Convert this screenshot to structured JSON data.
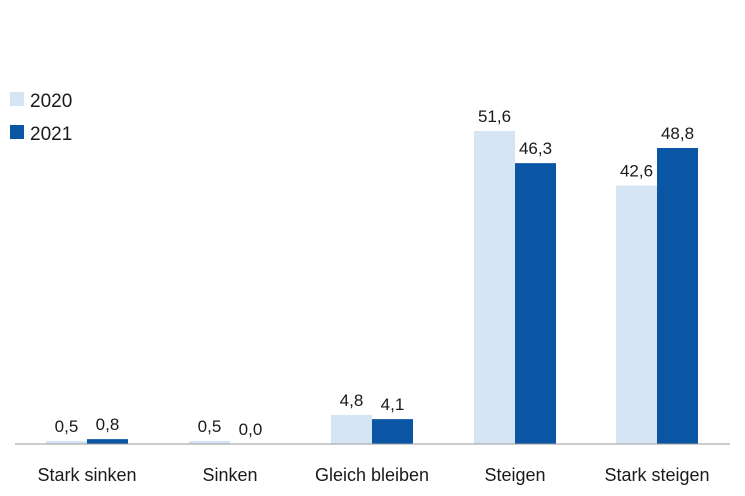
{
  "chart_data": {
    "type": "bar",
    "categories": [
      "Stark sinken",
      "Sinken",
      "Gleich bleiben",
      "Steigen",
      "Stark steigen"
    ],
    "series": [
      {
        "name": "2020",
        "values": [
          0.5,
          0.5,
          4.8,
          51.6,
          42.6
        ],
        "labels": [
          "0,5",
          "0,5",
          "4,8",
          "51,6",
          "42,6"
        ],
        "color": "#d5e5f4"
      },
      {
        "name": "2021",
        "values": [
          0.8,
          0.0,
          4.1,
          46.3,
          48.8
        ],
        "labels": [
          "0,8",
          "0,0",
          "4,1",
          "46,3",
          "48,8"
        ],
        "color": "#0a56a4"
      }
    ],
    "ylim": [
      0,
      60
    ],
    "grid": false,
    "legend_position": "top-left",
    "axis_color": "#9a9a9a"
  }
}
